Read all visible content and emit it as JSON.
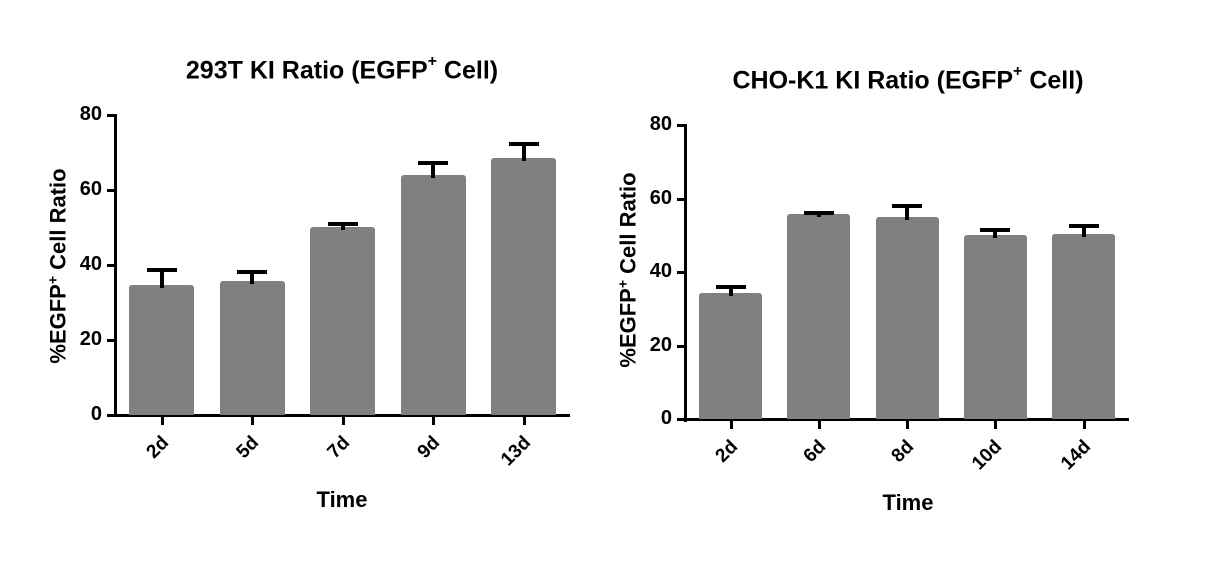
{
  "chart_data": [
    {
      "type": "bar",
      "title": "293T KI Ratio (EGFP+ Cell)",
      "title_main": "293T KI Ratio (EGFP",
      "title_sup": "+",
      "title_end": " Cell)",
      "xlabel": "Time",
      "ylabel": "%EGFP+ Cell Ratio",
      "ylabel_main": "%EGFP",
      "ylabel_sup": "+",
      "ylabel_end": " Cell Ratio",
      "ylim": [
        0,
        80
      ],
      "yticks": [
        "0",
        "20",
        "40",
        "60",
        "80"
      ],
      "grid": false,
      "categories": [
        "2d",
        "5d",
        "7d",
        "9d",
        "13d"
      ],
      "values": [
        34.7,
        35.7,
        50.1,
        64.0,
        68.5
      ],
      "error_upper": [
        38.9,
        38.4,
        51.2,
        67.5,
        72.5
      ],
      "bar_color": "#808080"
    },
    {
      "type": "bar",
      "title": "CHO-K1 KI Ratio (EGFP+ Cell)",
      "title_main": "CHO-K1 KI Ratio (EGFP",
      "title_sup": "+",
      "title_end": " Cell)",
      "xlabel": "Time",
      "ylabel": "%EGFP+ Cell Ratio",
      "ylabel_main": "%EGFP",
      "ylabel_sup": "+",
      "ylabel_end": " Cell Ratio",
      "ylim": [
        0,
        80
      ],
      "yticks": [
        "0",
        "20",
        "40",
        "60",
        "80"
      ],
      "grid": false,
      "categories": [
        "2d",
        "6d",
        "8d",
        "10d",
        "14d"
      ],
      "values": [
        34.4,
        55.8,
        55.0,
        50.1,
        50.4
      ],
      "error_upper": [
        36.3,
        56.4,
        58.3,
        51.8,
        52.8
      ],
      "bar_color": "#808080"
    }
  ]
}
